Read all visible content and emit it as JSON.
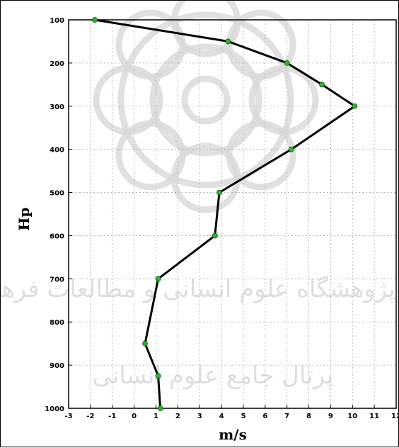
{
  "chart_data": {
    "type": "line",
    "xlabel": "m/s",
    "ylabel": "Hp",
    "xlim": [
      -3,
      12
    ],
    "ylim": [
      100,
      1000
    ],
    "y_inverted": true,
    "grid": true,
    "xticks": [
      -3,
      -2,
      -1,
      0,
      1,
      2,
      3,
      4,
      5,
      6,
      7,
      8,
      9,
      10,
      11,
      12
    ],
    "xtick_labels": [
      "-3",
      "-2",
      "-1",
      "0",
      "1",
      "2",
      "3",
      "4",
      "5",
      "6",
      "7",
      "8",
      "9",
      "10",
      "11",
      "12"
    ],
    "yticks": [
      100,
      200,
      300,
      400,
      500,
      600,
      700,
      800,
      900,
      1000
    ],
    "ytick_labels": [
      "100",
      "200",
      "300",
      "400",
      "500",
      "600",
      "700",
      "800",
      "900",
      "1000"
    ],
    "series": [
      {
        "x": [
          -1.8,
          4.3,
          7.0,
          8.6,
          10.1,
          7.2,
          3.9,
          3.7,
          1.1,
          0.5,
          1.1,
          1.2
        ],
        "y": [
          100,
          150,
          200,
          250,
          300,
          400,
          500,
          600,
          700,
          850,
          925,
          1000
        ],
        "line_color": "#000000",
        "marker_color": "#2db52d"
      }
    ]
  },
  "watermark": {
    "text_line1": "پژوهشگاه علوم انسانی و مطالعات فرهنگی",
    "text_line2": "پرتال جامع علوم انسانی"
  }
}
